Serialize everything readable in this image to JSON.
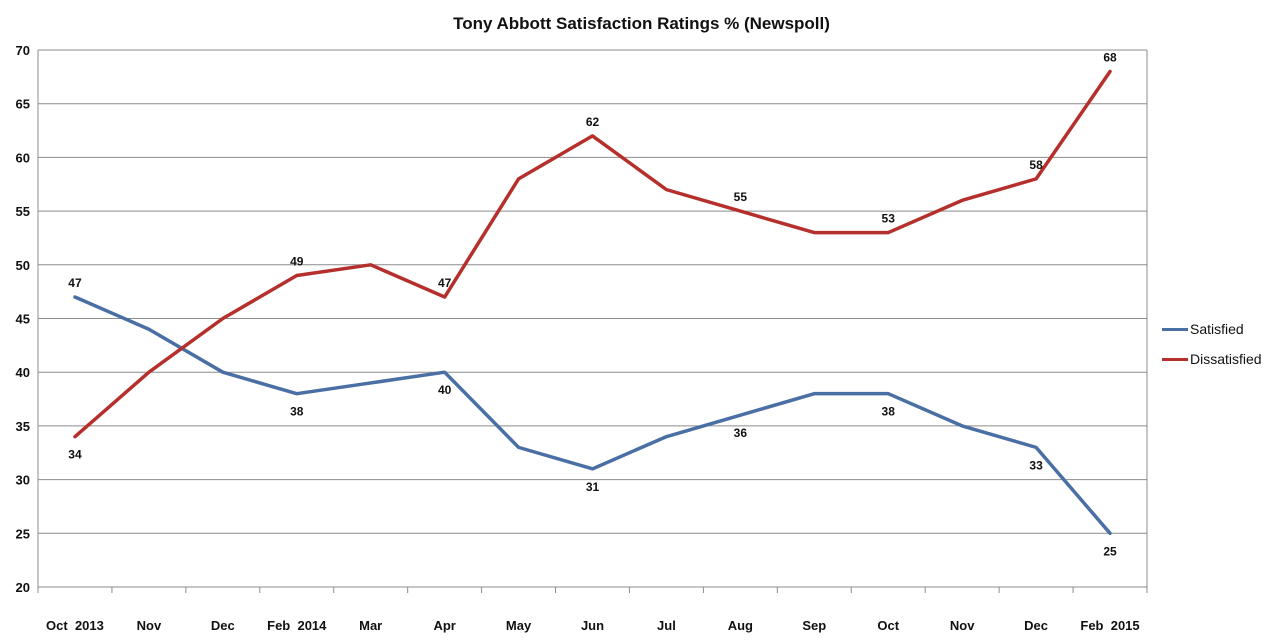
{
  "chart_data": {
    "type": "line",
    "title": "Tony Abbott Satisfaction Ratings % (Newspoll)",
    "categories": [
      "Oct  2013",
      "Nov",
      "Dec",
      "Feb  2014",
      "Mar",
      "Apr",
      "May",
      "Jun",
      "Jul",
      "Aug",
      "Sep",
      "Oct",
      "Nov",
      "Dec",
      "Feb  2015"
    ],
    "ylim": [
      20,
      70
    ],
    "yticks": [
      20,
      25,
      30,
      35,
      40,
      45,
      50,
      55,
      60,
      65,
      70
    ],
    "grid": true,
    "legend_position": "right",
    "series": [
      {
        "name": "Satisfied",
        "color": "#4a6fa5",
        "values": [
          47,
          44,
          40,
          38,
          39,
          40,
          33,
          31,
          34,
          36,
          38,
          38,
          35,
          33,
          25
        ],
        "labeled_points": [
          0,
          3,
          5,
          7,
          9,
          11,
          13,
          14
        ],
        "label_position": [
          "above",
          "below",
          "below",
          "below",
          "below",
          "below",
          "below",
          "below"
        ]
      },
      {
        "name": "Dissatisfied",
        "color": "#b5302c",
        "values": [
          34,
          40,
          45,
          49,
          50,
          47,
          58,
          62,
          57,
          55,
          53,
          53,
          56,
          58,
          68
        ],
        "labeled_points": [
          0,
          3,
          5,
          7,
          9,
          11,
          13,
          14
        ],
        "label_position": [
          "below",
          "above",
          "above",
          "above",
          "above",
          "above",
          "above",
          "above"
        ]
      }
    ]
  }
}
